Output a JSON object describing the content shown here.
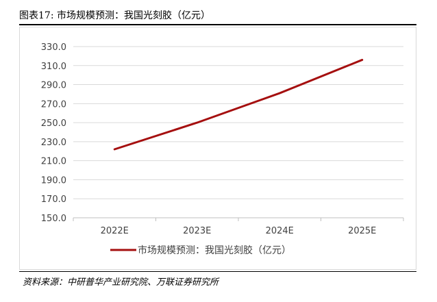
{
  "header": {
    "figure_title": "图表17: 市场规模预测：我国光刻胶（亿元）"
  },
  "footer": {
    "source": "资料来源：中研普华产业研究院、万联证券研究所"
  },
  "colors": {
    "series": "#a50f0f",
    "grid": "#d9d9d9",
    "axis_text": "#404040"
  },
  "chart_data": {
    "type": "line",
    "categories": [
      "2022E",
      "2023E",
      "2024E",
      "2025E"
    ],
    "series": [
      {
        "name": "市场规模预测：我国光刻胶（亿元）",
        "values": [
          222.0,
          250.0,
          281.0,
          316.0
        ]
      }
    ],
    "yticks": [
      "150.0",
      "170.0",
      "190.0",
      "210.0",
      "230.0",
      "250.0",
      "270.0",
      "290.0",
      "310.0",
      "330.0"
    ],
    "ylim": [
      150,
      330
    ],
    "grid": true,
    "legend_position": "bottom"
  }
}
